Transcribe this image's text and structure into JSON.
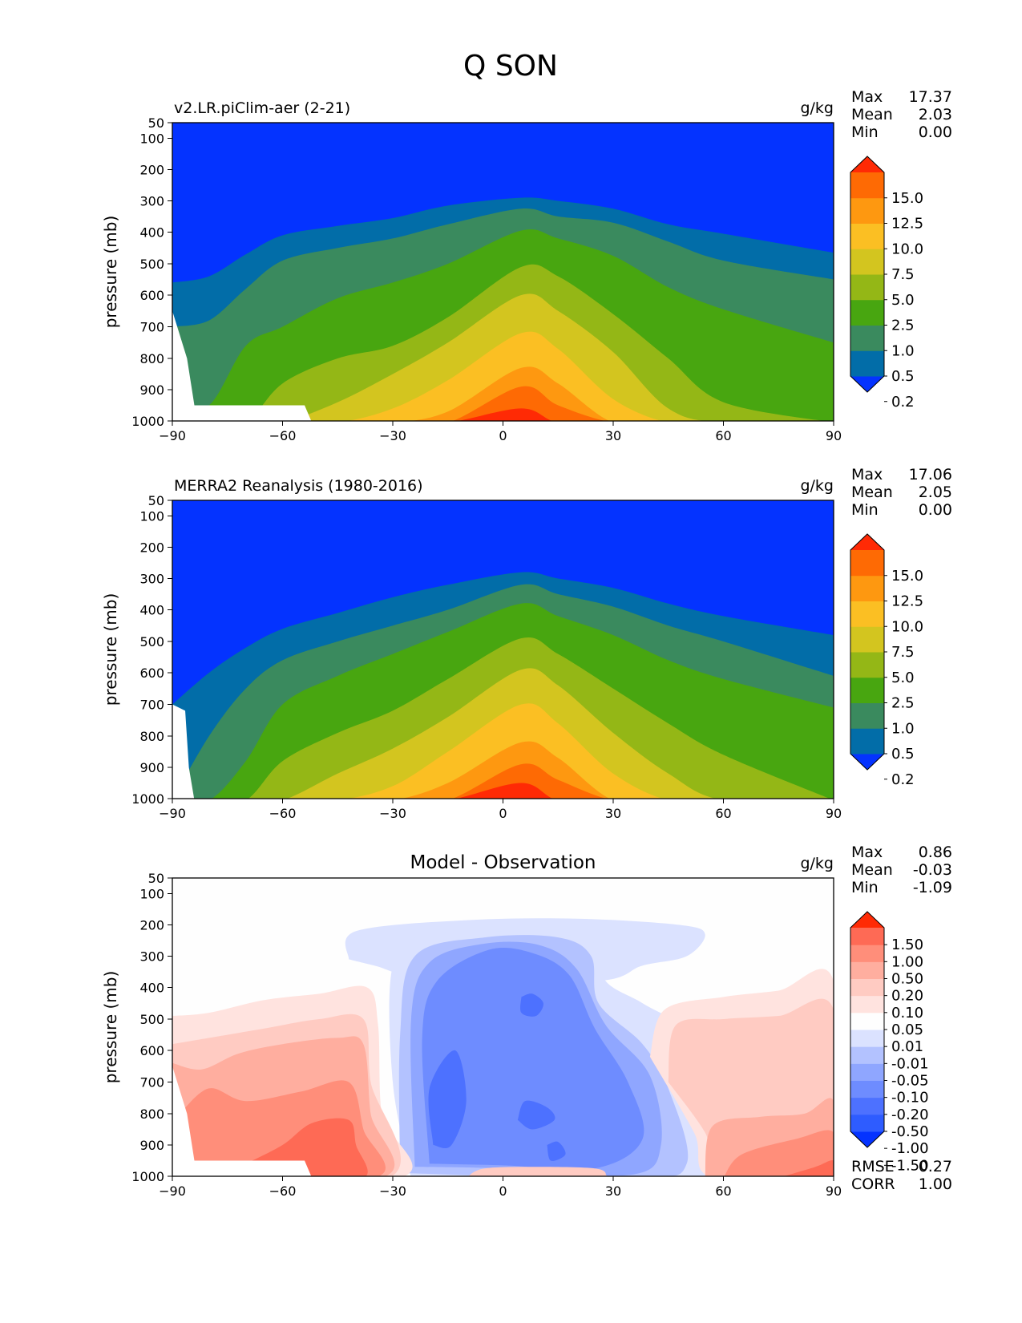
{
  "figure": {
    "title": "Q SON"
  },
  "chart_data": [
    {
      "type": "heatmap",
      "title": "v2.LR.piClim-aer (2-21)",
      "units": "g/kg",
      "ylabel": "pressure (mb)",
      "xlim": [
        -90,
        90
      ],
      "ylim": [
        1000,
        50
      ],
      "xticks": [
        "−90",
        "−60",
        "−30",
        "0",
        "30",
        "60",
        "90"
      ],
      "yticks": [
        "50",
        "100",
        "200",
        "300",
        "400",
        "500",
        "600",
        "700",
        "800",
        "900",
        "1000"
      ],
      "stats": [
        {
          "label": "Max",
          "value": "17.37"
        },
        {
          "label": "Mean",
          "value": "2.03"
        },
        {
          "label": "Min",
          "value": "0.00"
        }
      ],
      "colorbar": {
        "ticks": [
          "15.0",
          "12.5",
          "10.0",
          "7.5",
          "5.0",
          "2.5",
          "1.0",
          "0.5",
          "0.2"
        ],
        "colors": [
          "#0433ff",
          "#026da8",
          "#3a8a5e",
          "#48a610",
          "#94b716",
          "#d3c51f",
          "#fbbf23",
          "#fe9810",
          "#fe6a04",
          "#ff2a05"
        ]
      },
      "contour_tops": [
        {
          "level": 0.2,
          "pressures": [
            560,
            540,
            470,
            410,
            380,
            355,
            315,
            290,
            300,
            325,
            375,
            405,
            465
          ]
        },
        {
          "level": 0.5,
          "pressures": [
            700,
            680,
            580,
            490,
            450,
            420,
            375,
            325,
            350,
            370,
            430,
            490,
            550
          ]
        },
        {
          "level": 1.0,
          "pressures": [
            950,
            950,
            760,
            700,
            610,
            560,
            500,
            395,
            420,
            475,
            575,
            645,
            750
          ]
        },
        {
          "level": 2.5,
          "pressures": [
            1010,
            1010,
            1010,
            880,
            800,
            760,
            670,
            510,
            540,
            660,
            800,
            940,
            1010
          ]
        },
        {
          "level": 5.0,
          "pressures": [
            1010,
            1010,
            1010,
            1010,
            940,
            850,
            750,
            600,
            650,
            780,
            960,
            1010,
            1010
          ]
        },
        {
          "level": 7.5,
          "pressures": [
            1010,
            1010,
            1010,
            1010,
            1010,
            960,
            870,
            720,
            770,
            930,
            1010,
            1010,
            1010
          ]
        },
        {
          "level": 10.0,
          "pressures": [
            1010,
            1010,
            1010,
            1010,
            1010,
            1010,
            970,
            830,
            880,
            1010,
            1010,
            1010,
            1010
          ]
        },
        {
          "level": 12.5,
          "pressures": [
            1010,
            1010,
            1010,
            1010,
            1010,
            1010,
            1010,
            890,
            950,
            1010,
            1010,
            1010,
            1010
          ]
        },
        {
          "level": 15.0,
          "pressures": [
            1010,
            1010,
            1010,
            1010,
            1010,
            1010,
            1010,
            960,
            1010,
            1010,
            1010,
            1010,
            1010
          ]
        }
      ],
      "contour_lats": [
        -90,
        -80,
        -70,
        -60,
        -45,
        -30,
        -15,
        5,
        15,
        30,
        45,
        60,
        90
      ]
    },
    {
      "type": "heatmap",
      "title": "MERRA2 Reanalysis (1980-2016)",
      "units": "g/kg",
      "ylabel": "pressure (mb)",
      "xlim": [
        -90,
        90
      ],
      "ylim": [
        1000,
        50
      ],
      "xticks": [
        "−90",
        "−60",
        "−30",
        "0",
        "30",
        "60",
        "90"
      ],
      "yticks": [
        "50",
        "100",
        "200",
        "300",
        "400",
        "500",
        "600",
        "700",
        "800",
        "900",
        "1000"
      ],
      "stats": [
        {
          "label": "Max",
          "value": "17.06"
        },
        {
          "label": "Mean",
          "value": "2.05"
        },
        {
          "label": "Min",
          "value": "0.00"
        }
      ],
      "colorbar": {
        "ticks": [
          "15.0",
          "12.5",
          "10.0",
          "7.5",
          "5.0",
          "2.5",
          "1.0",
          "0.5",
          "0.2"
        ],
        "colors": [
          "#0433ff",
          "#026da8",
          "#3a8a5e",
          "#48a610",
          "#94b716",
          "#d3c51f",
          "#fbbf23",
          "#fe9810",
          "#fe6a04",
          "#ff2a05"
        ]
      },
      "contour_tops": [
        {
          "level": 0.2,
          "pressures": [
            700,
            600,
            520,
            460,
            410,
            360,
            320,
            280,
            300,
            330,
            380,
            420,
            480
          ]
        },
        {
          "level": 0.5,
          "pressures": [
            1010,
            800,
            650,
            560,
            500,
            450,
            400,
            320,
            350,
            390,
            450,
            500,
            610
          ]
        },
        {
          "level": 1.0,
          "pressures": [
            1010,
            1010,
            880,
            700,
            610,
            540,
            470,
            380,
            420,
            480,
            560,
            620,
            710
          ]
        },
        {
          "level": 2.5,
          "pressures": [
            1010,
            1010,
            1010,
            880,
            790,
            720,
            620,
            490,
            540,
            650,
            760,
            860,
            1010
          ]
        },
        {
          "level": 5.0,
          "pressures": [
            1010,
            1010,
            1010,
            1010,
            920,
            840,
            740,
            590,
            640,
            790,
            920,
            1010,
            1010
          ]
        },
        {
          "level": 7.5,
          "pressures": [
            1010,
            1010,
            1010,
            1010,
            1010,
            960,
            850,
            700,
            760,
            920,
            1010,
            1010,
            1010
          ]
        },
        {
          "level": 10.0,
          "pressures": [
            1010,
            1010,
            1010,
            1010,
            1010,
            1010,
            950,
            820,
            870,
            1010,
            1010,
            1010,
            1010
          ]
        },
        {
          "level": 12.5,
          "pressures": [
            1010,
            1010,
            1010,
            1010,
            1010,
            1010,
            1010,
            890,
            940,
            1010,
            1010,
            1010,
            1010
          ]
        },
        {
          "level": 15.0,
          "pressures": [
            1010,
            1010,
            1010,
            1010,
            1010,
            1010,
            1010,
            950,
            1010,
            1010,
            1010,
            1010,
            1010
          ]
        }
      ],
      "contour_lats": [
        -90,
        -80,
        -70,
        -60,
        -45,
        -30,
        -15,
        5,
        15,
        30,
        45,
        60,
        90
      ]
    },
    {
      "type": "heatmap",
      "title": "Model - Observation",
      "units": "g/kg",
      "ylabel": "pressure (mb)",
      "xlim": [
        -90,
        90
      ],
      "ylim": [
        1000,
        50
      ],
      "xticks": [
        "−90",
        "−60",
        "−30",
        "0",
        "30",
        "60",
        "90"
      ],
      "yticks": [
        "50",
        "100",
        "200",
        "300",
        "400",
        "500",
        "600",
        "700",
        "800",
        "900",
        "1000"
      ],
      "stats": [
        {
          "label": "Max",
          "value": "0.86"
        },
        {
          "label": "Mean",
          "value": "-0.03"
        },
        {
          "label": "Min",
          "value": "-1.09"
        }
      ],
      "extra_stats": [
        {
          "label": "RMSE",
          "value": "0.27"
        },
        {
          "label": "CORR",
          "value": "1.00"
        }
      ],
      "colorbar": {
        "ticks": [
          "1.50",
          "1.00",
          "0.50",
          "0.20",
          "0.10",
          "0.05",
          "0.01",
          "-0.01",
          "-0.05",
          "-0.10",
          "-0.20",
          "-0.50",
          "-1.00",
          "-1.50"
        ],
        "colors": [
          "#0433ff",
          "#2e5cff",
          "#4d71ff",
          "#6e8cff",
          "#8fa6ff",
          "#b3c2ff",
          "#dbe2ff",
          "#fefefe",
          "#ffe3df",
          "#ffcbc2",
          "#ffae9f",
          "#ff8e7a",
          "#fe6a55",
          "#ff2a05"
        ]
      }
    }
  ]
}
